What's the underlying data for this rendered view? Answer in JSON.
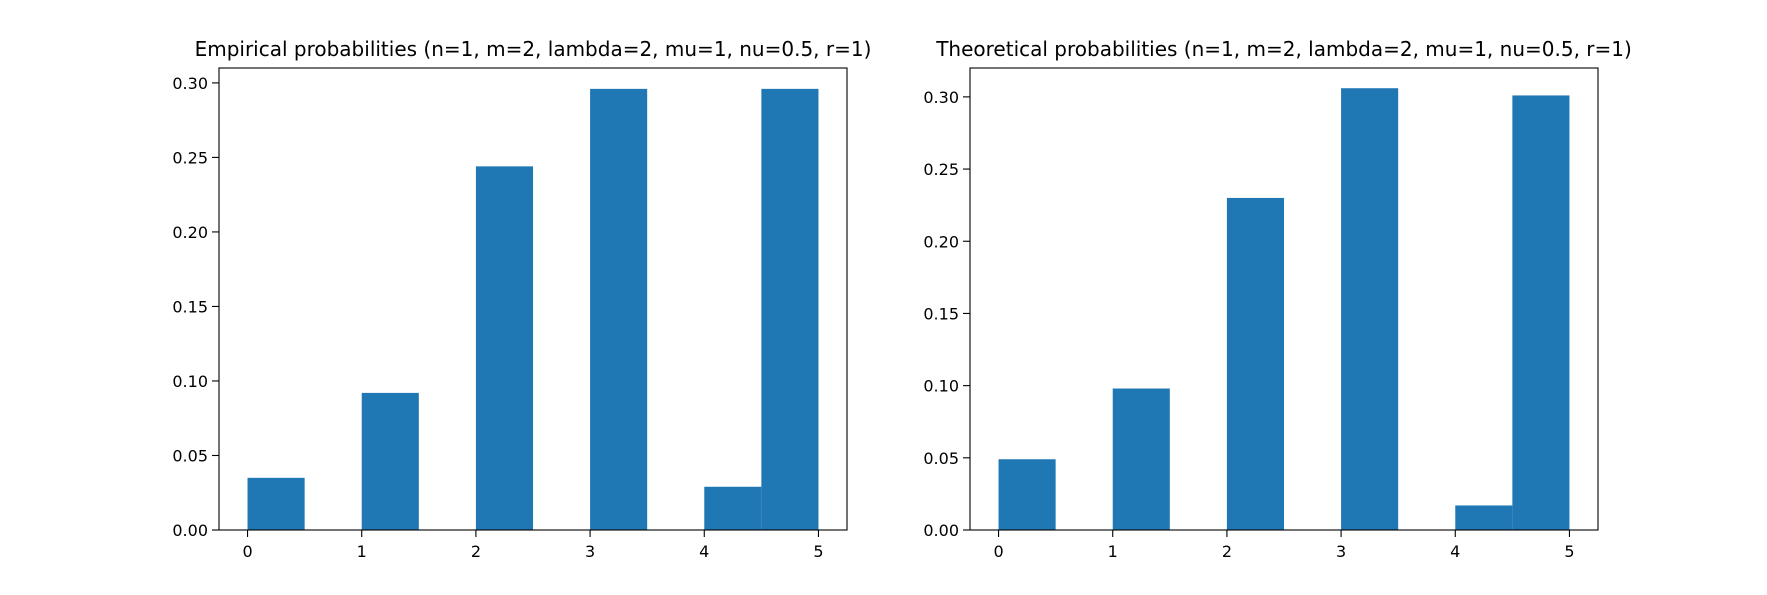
{
  "colors": {
    "bar": "#1f77b4",
    "axis": "#000000",
    "background": "#ffffff"
  },
  "chart_data": [
    {
      "type": "bar",
      "title": "Empirical probabilities (n=1, m=2, lambda=2, mu=1, nu=0.5, r=1)",
      "xlabel": "",
      "ylabel": "",
      "xlim": [
        -0.25,
        5.25
      ],
      "ylim": [
        0,
        0.31
      ],
      "xticks": [
        "0",
        "1",
        "2",
        "3",
        "4",
        "5"
      ],
      "yticks": [
        "0.00",
        "0.05",
        "0.10",
        "0.15",
        "0.20",
        "0.25",
        "0.30"
      ],
      "grid": false,
      "bars": [
        {
          "x0": 0.0,
          "x1": 0.5,
          "value": 0.035
        },
        {
          "x0": 1.0,
          "x1": 1.5,
          "value": 0.092
        },
        {
          "x0": 2.0,
          "x1": 2.5,
          "value": 0.244
        },
        {
          "x0": 3.0,
          "x1": 3.5,
          "value": 0.296
        },
        {
          "x0": 4.0,
          "x1": 4.5,
          "value": 0.029
        },
        {
          "x0": 4.5,
          "x1": 5.0,
          "value": 0.296
        }
      ]
    },
    {
      "type": "bar",
      "title": "Theoretical probabilities (n=1, m=2, lambda=2, mu=1, nu=0.5, r=1)",
      "xlabel": "",
      "ylabel": "",
      "xlim": [
        -0.25,
        5.25
      ],
      "ylim": [
        0,
        0.32
      ],
      "xticks": [
        "0",
        "1",
        "2",
        "3",
        "4",
        "5"
      ],
      "yticks": [
        "0.00",
        "0.05",
        "0.10",
        "0.15",
        "0.20",
        "0.25",
        "0.30"
      ],
      "grid": false,
      "bars": [
        {
          "x0": 0.0,
          "x1": 0.5,
          "value": 0.049
        },
        {
          "x0": 1.0,
          "x1": 1.5,
          "value": 0.098
        },
        {
          "x0": 2.0,
          "x1": 2.5,
          "value": 0.23
        },
        {
          "x0": 3.0,
          "x1": 3.5,
          "value": 0.306
        },
        {
          "x0": 4.0,
          "x1": 4.5,
          "value": 0.017
        },
        {
          "x0": 4.5,
          "x1": 5.0,
          "value": 0.301
        }
      ]
    }
  ]
}
